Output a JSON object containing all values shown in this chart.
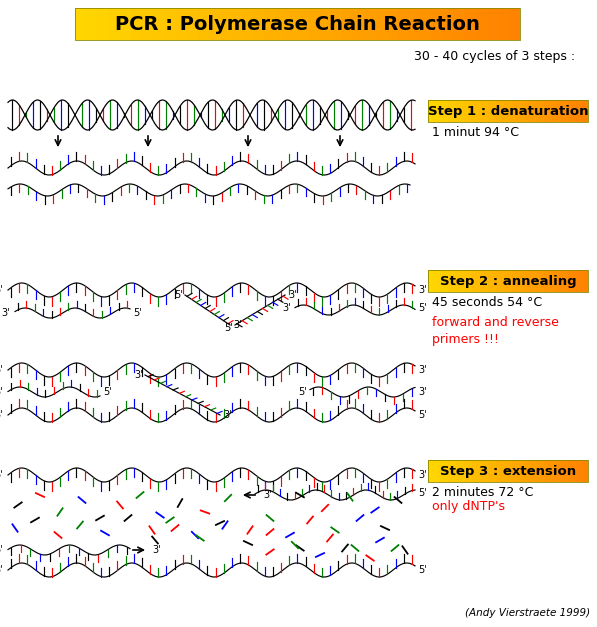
{
  "title": "PCR : Polymerase Chain Reaction",
  "subtitle": "30 - 40 cycles of 3 steps :",
  "step1_label": "Step 1 : denaturation",
  "step1_detail": "1 minut 94 °C",
  "step2_label": "Step 2 : annealing",
  "step2_detail": "45 seconds 54 °C",
  "step2_extra": "forward and reverse\nprimers !!!",
  "step3_label": "Step 3 : extension",
  "step3_detail": "2 minutes 72 °C",
  "step3_extra": "only dNTP's",
  "footer": "(Andy Vierstraete 1999)",
  "dna_colors": [
    "#000000",
    "#FF0000",
    "#008000",
    "#0000FF"
  ],
  "bg_color": "#FFFFFF",
  "gold1": [
    1.0,
    0.84,
    0.0
  ],
  "gold2": [
    1.0,
    0.5,
    0.0
  ]
}
